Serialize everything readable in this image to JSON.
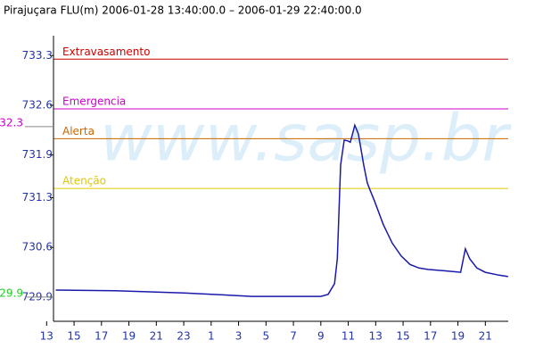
{
  "chart_data": {
    "type": "line",
    "title": "Pirajuçara FLU(m) 2006-01-28 13:40:00.0 – 2006-01-29 22:40:00.0",
    "watermark": "www.sasp.br",
    "x": [
      13.67,
      18,
      23,
      28,
      33,
      33.53,
      34.0,
      34.2,
      34.44,
      34.7,
      34.96,
      35.15,
      35.48,
      35.74,
      36.13,
      36.39,
      36.58,
      36.9,
      37.56,
      38.21,
      38.86,
      39.5,
      40.16,
      40.81,
      42.1,
      43.2,
      43.54,
      43.86,
      44.38,
      45.0,
      46.0,
      46.66
    ],
    "series": [
      {
        "name": "Pirajuçara FLU(m)",
        "color": "#1a1aaa",
        "values": [
          730.0,
          729.99,
          729.96,
          729.91,
          729.91,
          729.94,
          730.09,
          730.44,
          731.76,
          732.11,
          732.1,
          732.08,
          732.32,
          732.2,
          731.76,
          731.51,
          731.41,
          731.26,
          730.92,
          730.66,
          730.48,
          730.36,
          730.31,
          730.29,
          730.27,
          730.25,
          730.58,
          730.44,
          730.31,
          730.25,
          730.21,
          730.19
        ]
      }
    ],
    "thresholds": [
      {
        "name": "Extravasamento",
        "value": 733.25,
        "color": "#cc0000"
      },
      {
        "name": "Emergencia",
        "value": 732.55,
        "color": "#cc00cc"
      },
      {
        "name": "Alerta",
        "value": 732.13,
        "color": "#cc6600"
      },
      {
        "name": "Atenção",
        "value": 731.43,
        "color": "#e0c800"
      }
    ],
    "max_marker": {
      "value": 732.3,
      "label": "32.3",
      "color": "#cc00cc"
    },
    "min_marker": {
      "value": 729.9,
      "label": "29.9",
      "color": "#22cc22"
    },
    "xlim": [
      13.5,
      46.67
    ],
    "ylim": [
      729.56,
      733.58
    ],
    "yticks": [
      729.9,
      730.6,
      731.3,
      731.9,
      732.6,
      733.3
    ],
    "xticks": [
      {
        "value": 13,
        "label": "13"
      },
      {
        "value": 15,
        "label": "15"
      },
      {
        "value": 17,
        "label": "17"
      },
      {
        "value": 19,
        "label": "19"
      },
      {
        "value": 21,
        "label": "21"
      },
      {
        "value": 23,
        "label": "23"
      },
      {
        "value": 25,
        "label": "1"
      },
      {
        "value": 27,
        "label": "3"
      },
      {
        "value": 29,
        "label": "5"
      },
      {
        "value": 31,
        "label": "7"
      },
      {
        "value": 33,
        "label": "9"
      },
      {
        "value": 35,
        "label": "11"
      },
      {
        "value": 37,
        "label": "13"
      },
      {
        "value": 39,
        "label": "15"
      },
      {
        "value": 41,
        "label": "17"
      },
      {
        "value": 43,
        "label": "19"
      },
      {
        "value": 45,
        "label": "21"
      }
    ]
  }
}
